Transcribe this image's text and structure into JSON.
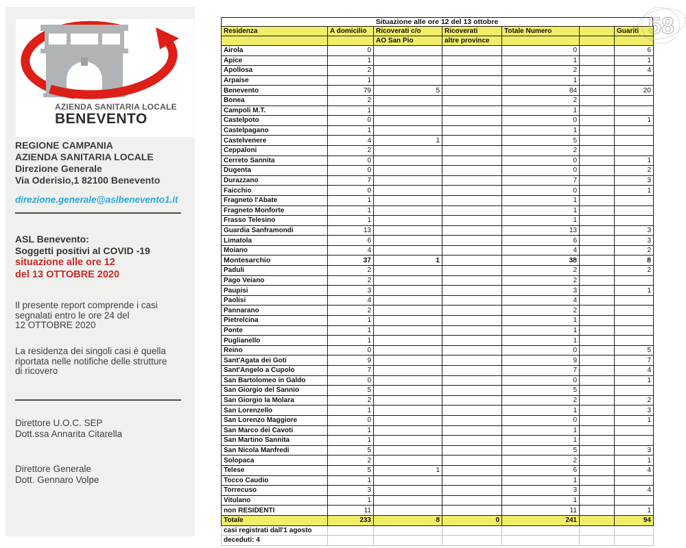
{
  "watermark": {
    "text": "58"
  },
  "colors": {
    "header_yellow": "#f0ee68",
    "accent_red": "#cc2a24",
    "link_blue": "#2aa9e1",
    "logo_red": "#dd1f17"
  },
  "sidebar": {
    "logo": {
      "org": "AZIENDA SANITARIA LOCALE",
      "city": "BENEVENTO"
    },
    "address_line1": "REGIONE CAMPANIA",
    "address_line2": "AZIENDA SANITARIA LOCALE",
    "address_line3": "Direzione Generale",
    "address_line4": "Via Oderisio,1 82100 Benevento",
    "email": "direzione.generale@aslbenevento1.it",
    "report_title_line1": "ASL Benevento:",
    "report_title_line2": "Soggetti positivi al COVID -19",
    "report_date_line1": "situazione alle ore 12",
    "report_date_line2": "del 13 OTTOBRE 2020",
    "note1_line1": "Il presente report comprende i casi",
    "note1_line2": "segnalati entro le ore 24 del",
    "note1_line3": "12 OTTOBRE 2020",
    "note2_line1": "La residenza dei singoli casi è quella",
    "note2_line2": "riportata nelle notifiche delle strutture",
    "note2_line3": "di ricovero",
    "director1_line1": "Direttore U.O.C. SEP",
    "director1_line2": "Dott.ssa Annarita Citarella",
    "director2_line1": "Direttore Generale",
    "director2_line2": "Dott. Gennaro Volpe"
  },
  "table": {
    "title": "Situazione alle ore 12 del 13 ottobre",
    "header_row1": [
      "Residenza",
      "A domicilio",
      "Ricoverati c/o",
      "Ricoverati",
      "Totale Numero",
      "",
      "Guariti"
    ],
    "header_row2": [
      "",
      "",
      "AO San Pio",
      "altre province",
      "",
      "",
      ""
    ],
    "rows": [
      [
        "Airola",
        "0",
        "",
        "",
        "0",
        "",
        "6"
      ],
      [
        "Apice",
        "1",
        "",
        "",
        "1",
        "",
        "1"
      ],
      [
        "Apollosa",
        "2",
        "",
        "",
        "2",
        "",
        "4"
      ],
      [
        "Arpaise",
        "1",
        "",
        "",
        "1",
        "",
        ""
      ],
      [
        "Benevento",
        "79",
        "5",
        "",
        "84",
        "",
        "20"
      ],
      [
        "Bonea",
        "2",
        "",
        "",
        "2",
        "",
        ""
      ],
      [
        "Campoli M.T.",
        "1",
        "",
        "",
        "1",
        "",
        ""
      ],
      [
        "Castelpoto",
        "0",
        "",
        "",
        "0",
        "",
        "1"
      ],
      [
        "Castelpagano",
        "1",
        "",
        "",
        "1",
        "",
        ""
      ],
      [
        "Castelvenere",
        "4",
        "1",
        "",
        "5",
        "",
        ""
      ],
      [
        "Ceppaloni",
        "2",
        "",
        "",
        "2",
        "",
        ""
      ],
      [
        "Cerreto Sannita",
        "0",
        "",
        "",
        "0",
        "",
        "1"
      ],
      [
        "Dugenta",
        "0",
        "",
        "",
        "0",
        "",
        "2"
      ],
      [
        "Durazzano",
        "7",
        "",
        "",
        "7",
        "",
        "3"
      ],
      [
        "Faicchio",
        "0",
        "",
        "",
        "0",
        "",
        "1"
      ],
      [
        "Fragneto l'Abate",
        "1",
        "",
        "",
        "1",
        "",
        ""
      ],
      [
        "Fragneto Monforte",
        "1",
        "",
        "",
        "1",
        "",
        ""
      ],
      [
        "Frasso Telesino",
        "1",
        "",
        "",
        "1",
        "",
        ""
      ],
      [
        "Guardia Sanframondi",
        "13",
        "",
        "",
        "13",
        "",
        "3"
      ],
      [
        "Limatola",
        "6",
        "",
        "",
        "6",
        "",
        "3"
      ],
      [
        "Moiano",
        "4",
        "",
        "",
        "4",
        "",
        "2"
      ],
      [
        "Montesarchio",
        "37",
        "1",
        "",
        "38",
        "",
        "8"
      ],
      [
        "Paduli",
        "2",
        "",
        "",
        "2",
        "",
        "2"
      ],
      [
        "Pago Veiano",
        "2",
        "",
        "",
        "2",
        "",
        ""
      ],
      [
        "Paupisi",
        "3",
        "",
        "",
        "3",
        "",
        "1"
      ],
      [
        "Paolisi",
        "4",
        "",
        "",
        "4",
        "",
        ""
      ],
      [
        "Pannarano",
        "2",
        "",
        "",
        "2",
        "",
        ""
      ],
      [
        "Pietrelcina",
        "1",
        "",
        "",
        "1",
        "",
        ""
      ],
      [
        "Ponte",
        "1",
        "",
        "",
        "1",
        "",
        ""
      ],
      [
        "Puglianello",
        "1",
        "",
        "",
        "1",
        "",
        ""
      ],
      [
        "Reino",
        "0",
        "",
        "",
        "0",
        "",
        "5"
      ],
      [
        "Sant'Agata dei Goti",
        "9",
        "",
        "",
        "9",
        "",
        "7"
      ],
      [
        "Sant'Angelo a Cupolo",
        "7",
        "",
        "",
        "7",
        "",
        "4"
      ],
      [
        "San Bartolomeo in Galdo",
        "0",
        "",
        "",
        "0",
        "",
        "1"
      ],
      [
        "San Giorgio del Sannio",
        "5",
        "",
        "",
        "5",
        "",
        ""
      ],
      [
        "San Giorgio la Molara",
        "2",
        "",
        "",
        "2",
        "",
        "2"
      ],
      [
        "San Lorenzello",
        "1",
        "",
        "",
        "1",
        "",
        "3"
      ],
      [
        "San Lorenzo Maggiore",
        "0",
        "",
        "",
        "0",
        "",
        "1"
      ],
      [
        "San Marco dei Cavoti",
        "1",
        "",
        "",
        "1",
        "",
        ""
      ],
      [
        "San Martino Sannita",
        "1",
        "",
        "",
        "1",
        "",
        ""
      ],
      [
        "San Nicola Manfredi",
        "5",
        "",
        "",
        "5",
        "",
        "3"
      ],
      [
        "Solopaca",
        "2",
        "",
        "",
        "2",
        "",
        "1"
      ],
      [
        "Telese",
        "5",
        "1",
        "",
        "6",
        "",
        "4"
      ],
      [
        "Tocco Caudio",
        "1",
        "",
        "",
        "1",
        "",
        ""
      ],
      [
        "Torrecuso",
        "3",
        "",
        "",
        "3",
        "",
        "4"
      ],
      [
        "Vitulano",
        "1",
        "",
        "",
        "1",
        "",
        ""
      ],
      [
        "non RESIDENTI",
        "11",
        "",
        "",
        "11",
        "",
        "1"
      ]
    ],
    "bold_rows": [
      "Montesarchio"
    ],
    "total_row": [
      "Totale",
      "233",
      "8",
      "0",
      "241",
      "",
      "94"
    ],
    "footer_rows": [
      "casi registrati dall'1 agosto",
      "deceduti: 4"
    ]
  }
}
